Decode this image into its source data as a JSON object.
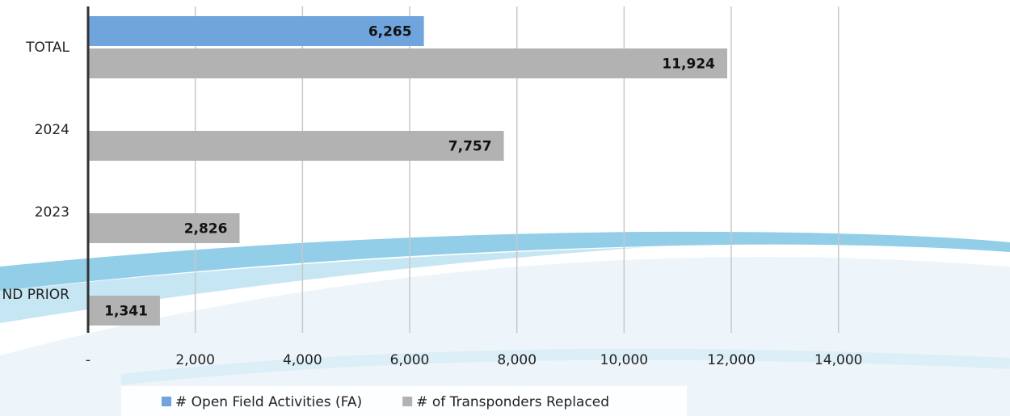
{
  "chart_data": {
    "type": "hbar",
    "categories": [
      "TOTAL",
      "2024",
      "2023",
      "ND PRIOR"
    ],
    "series": [
      {
        "name": "# Open Field Activities (FA)",
        "color": "#6fa5dc",
        "values": [
          6265,
          null,
          null,
          null
        ],
        "value_labels": [
          "6,265",
          null,
          null,
          null
        ]
      },
      {
        "name": "# of Transponders Replaced",
        "color": "#b2b2b2",
        "values": [
          11924,
          7757,
          2826,
          1341
        ],
        "value_labels": [
          "11,924",
          "7,757",
          "2,826",
          "1,341"
        ]
      }
    ],
    "xlim": [
      0,
      17200
    ],
    "xticks": [
      {
        "value": 0,
        "label": "-"
      },
      {
        "value": 2000,
        "label": "2,000"
      },
      {
        "value": 4000,
        "label": "4,000"
      },
      {
        "value": 6000,
        "label": "6,000"
      },
      {
        "value": 8000,
        "label": "8,000"
      },
      {
        "value": 10000,
        "label": "10,000"
      },
      {
        "value": 12000,
        "label": "12,000"
      },
      {
        "value": 14000,
        "label": "14,000"
      }
    ],
    "grid": true
  }
}
